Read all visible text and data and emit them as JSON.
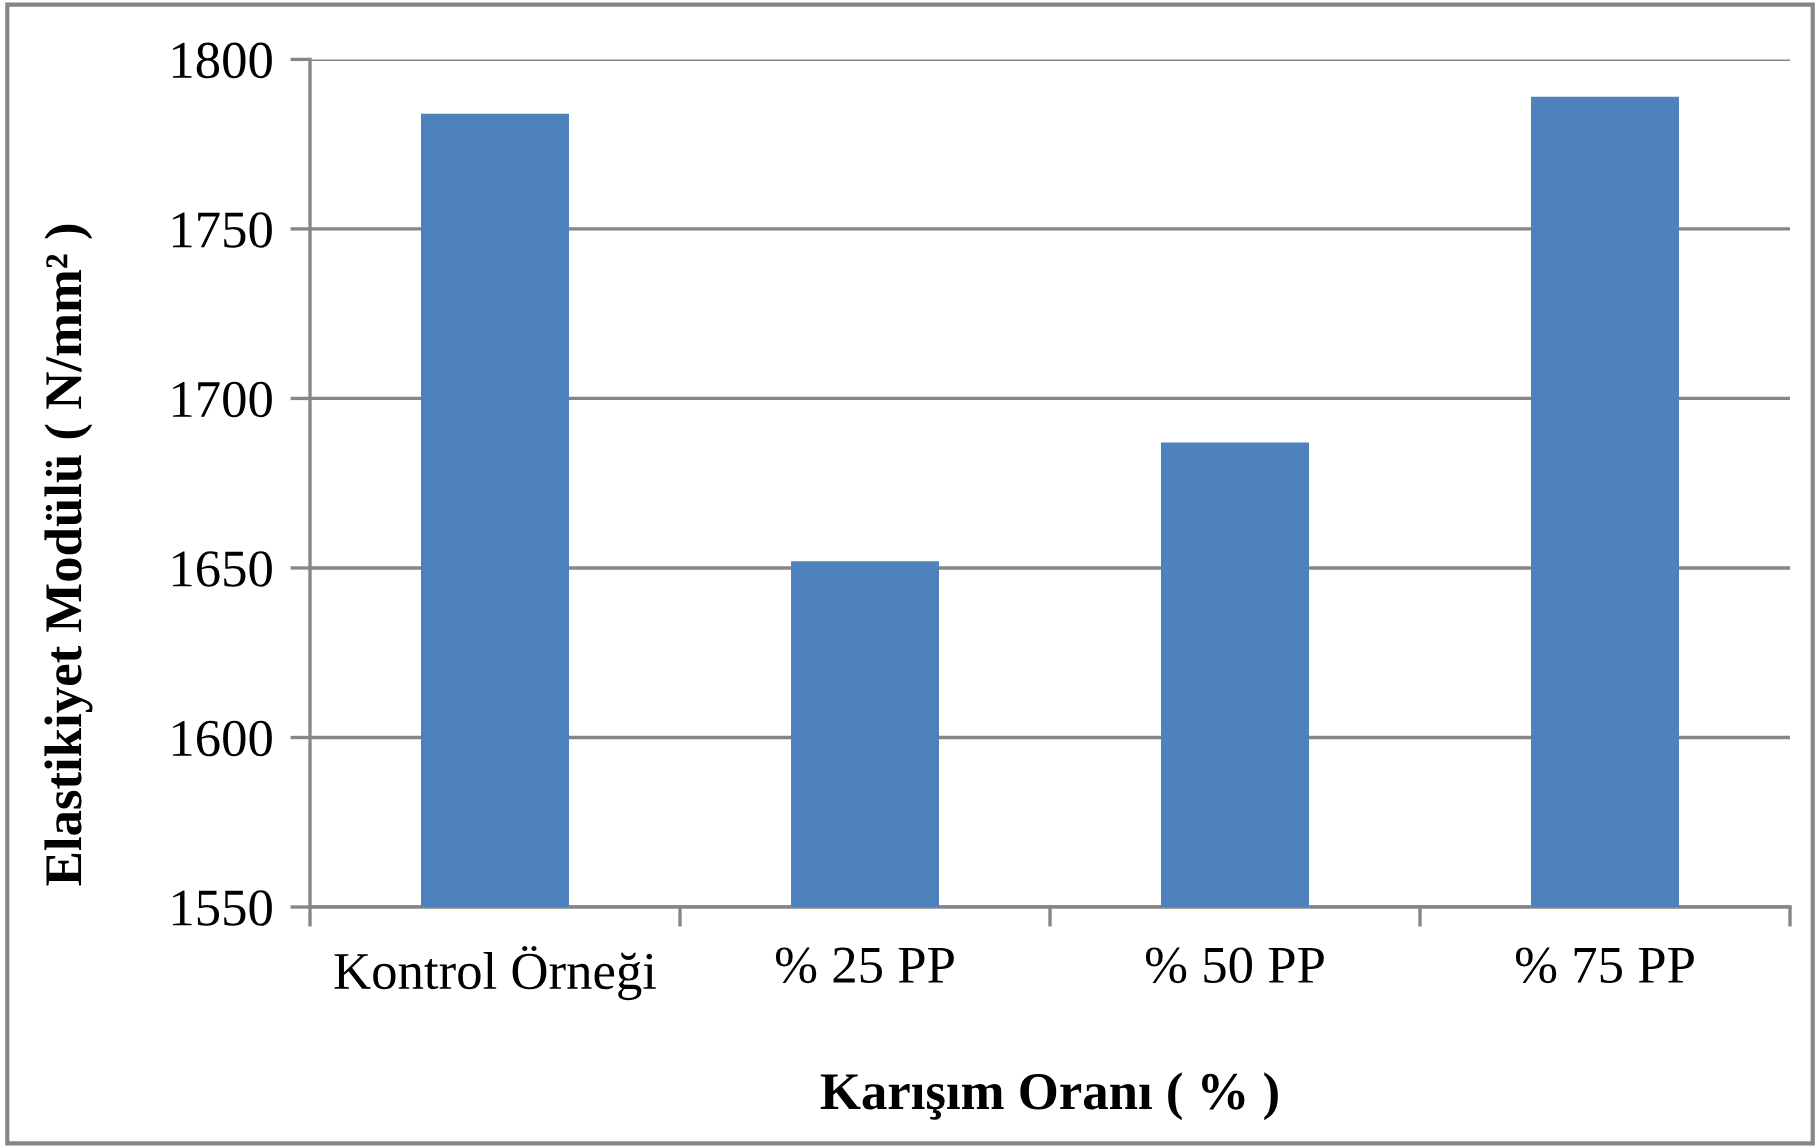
{
  "chart_data": {
    "type": "bar",
    "xlabel": "Karışım Oranı ( % )",
    "ylabel": "Elastikiyet Modülü ( N/mm² )",
    "categories": [
      "Kontrol Örneği",
      "% 25 PP",
      "% 50 PP",
      "% 75 PP"
    ],
    "values": [
      1784,
      1652,
      1687,
      1789
    ],
    "color": "#4f81bd",
    "ylim": [
      1550,
      1800
    ],
    "yticks": [
      1550,
      1600,
      1650,
      1700,
      1750,
      1800
    ],
    "grid": "y",
    "legend": false
  }
}
